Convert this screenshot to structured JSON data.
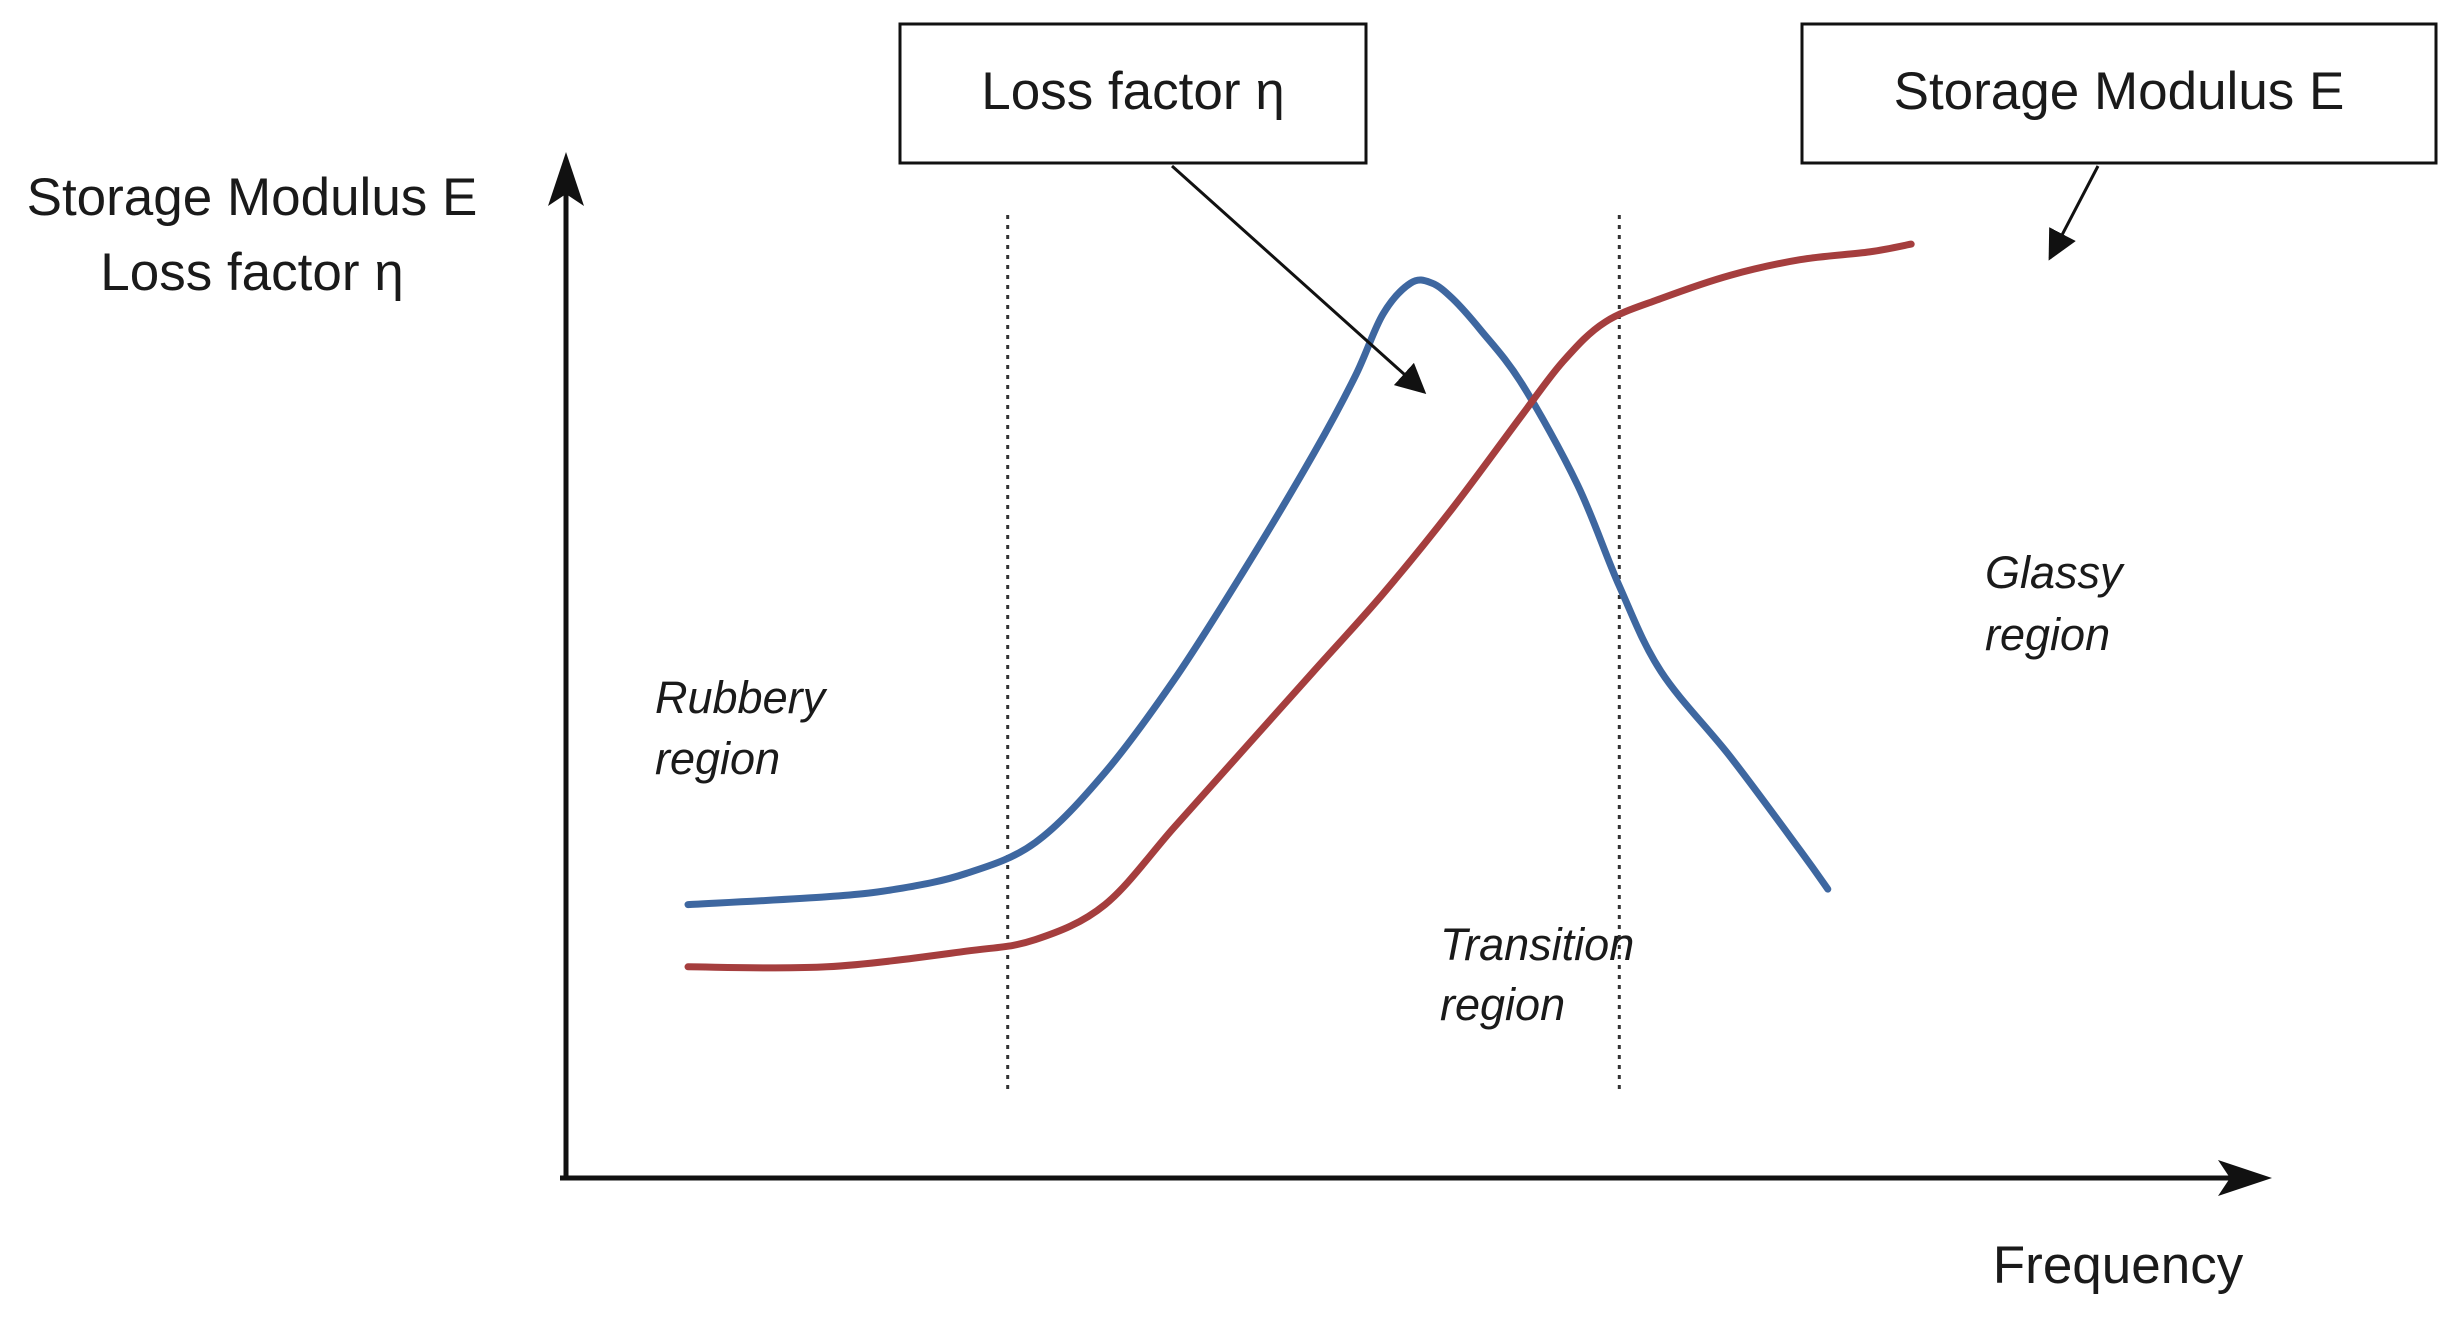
{
  "chart_data": {
    "type": "line",
    "ylabel_lines": [
      "Storage Modulus E",
      "Loss factor η"
    ],
    "xlabel": "Frequency",
    "regions": [
      {
        "lines": [
          "Rubbery",
          "region"
        ]
      },
      {
        "lines": [
          "Transition",
          "region"
        ]
      },
      {
        "lines": [
          "Glassy",
          "region"
        ]
      }
    ],
    "callouts": [
      {
        "text": "Loss factor η",
        "series": "loss"
      },
      {
        "text": "Storage Modulus E",
        "series": "storage"
      }
    ],
    "x_range": [
      0,
      100
    ],
    "y_range": [
      0,
      100
    ],
    "boundaries": [
      23,
      67
    ],
    "series": [
      {
        "id": "loss",
        "color": "#3e67a0",
        "x": [
          0,
          10,
          15,
          20,
          25,
          30,
          35,
          40,
          45,
          48,
          50,
          52,
          53.5,
          55,
          57,
          60,
          64,
          67,
          70,
          75,
          80,
          82
        ],
        "y": [
          20,
          21,
          22,
          24,
          28,
          37,
          49,
          63,
          78,
          88,
          96,
          100,
          100,
          98,
          94,
          87,
          74,
          61,
          50,
          39,
          27,
          22
        ]
      },
      {
        "id": "storage",
        "color": "#a53e3e",
        "x": [
          0,
          10,
          20,
          25,
          30,
          35,
          40,
          45,
          50,
          55,
          60,
          63,
          66,
          70,
          75,
          80,
          85,
          88
        ],
        "y": [
          12,
          12,
          14,
          15.5,
          20,
          30,
          40,
          50,
          60,
          71,
          83,
          90,
          95,
          98,
          101,
          103,
          104,
          105
        ]
      }
    ]
  }
}
